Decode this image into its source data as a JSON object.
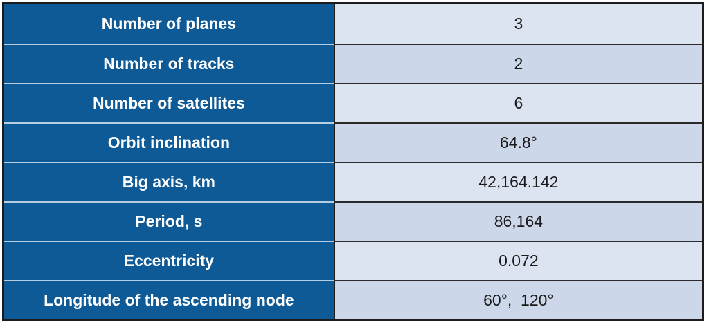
{
  "table": {
    "rows": [
      {
        "label": "Number of planes",
        "value": "3"
      },
      {
        "label": "Number of tracks",
        "value": "2"
      },
      {
        "label": "Number of satellites",
        "value": "6"
      },
      {
        "label": "Orbit inclination",
        "value": "64.8°"
      },
      {
        "label": "Big axis, km",
        "value": "42,164.142"
      },
      {
        "label": "Period, s",
        "value": "86,164"
      },
      {
        "label": "Eccentricity",
        "value": "0.072"
      },
      {
        "label": "Longitude of the ascending node",
        "value": "60°,  120°"
      }
    ]
  },
  "colors": {
    "header-blue": "#0e5a96",
    "label-text": "#ffffff",
    "value-text": "#1a1a1a",
    "value-bg-light": "#dde4f1",
    "value-bg-dark": "#ccd8e9",
    "light-separator": "#b7cde2",
    "dark-separator": "#2a2a2a",
    "border-dark": "#1c1c1c"
  }
}
